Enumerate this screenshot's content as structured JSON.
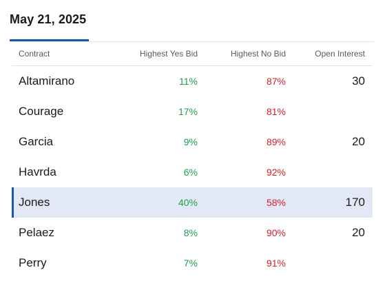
{
  "date_tab": {
    "label": "May 21, 2025",
    "accent_color": "#1357b7"
  },
  "table": {
    "headers": {
      "contract": "Contract",
      "yes_bid": "Highest Yes Bid",
      "no_bid": "Highest No Bid",
      "open_interest": "Open Interest"
    },
    "rows": [
      {
        "contract": "Altamirano",
        "yes_bid": "11%",
        "no_bid": "87%",
        "open_interest": "30",
        "selected": false
      },
      {
        "contract": "Courage",
        "yes_bid": "17%",
        "no_bid": "81%",
        "open_interest": "",
        "selected": false
      },
      {
        "contract": "Garcia",
        "yes_bid": "9%",
        "no_bid": "89%",
        "open_interest": "20",
        "selected": false
      },
      {
        "contract": "Havrda",
        "yes_bid": "6%",
        "no_bid": "92%",
        "open_interest": "",
        "selected": false
      },
      {
        "contract": "Jones",
        "yes_bid": "40%",
        "no_bid": "58%",
        "open_interest": "170",
        "selected": true
      },
      {
        "contract": "Pelaez",
        "yes_bid": "8%",
        "no_bid": "90%",
        "open_interest": "20",
        "selected": false
      },
      {
        "contract": "Perry",
        "yes_bid": "7%",
        "no_bid": "91%",
        "open_interest": "",
        "selected": false
      }
    ],
    "colors": {
      "yes": "#1f9e4a",
      "no": "#d0202a",
      "selected_row_bg": "#e3e8f6"
    }
  }
}
